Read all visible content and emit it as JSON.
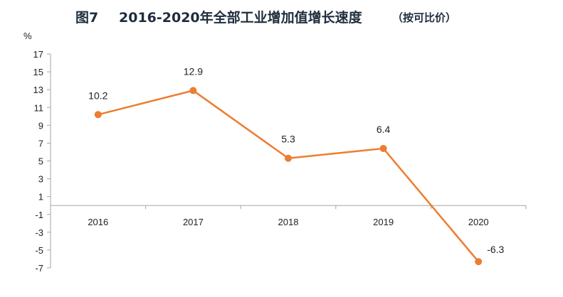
{
  "chart_data": {
    "type": "line",
    "title_prefix": "图7",
    "title": "2016-2020年全部工业增加值增长速度",
    "subtitle": "（按可比价）",
    "ylabel": "%",
    "xlabel": "",
    "categories": [
      "2016",
      "2017",
      "2018",
      "2019",
      "2020"
    ],
    "series": [
      {
        "values": [
          10.2,
          12.9,
          5.3,
          6.4,
          -6.3
        ],
        "color": "#ed7d31"
      }
    ],
    "data_labels": [
      "10.2",
      "12.9",
      "5.3",
      "6.4",
      "-6.3"
    ],
    "yticks": [
      17,
      15,
      13,
      11,
      9,
      7,
      5,
      3,
      1,
      -1,
      -3,
      -5,
      -7
    ],
    "ylim": [
      -7,
      17
    ],
    "grid": false,
    "legend": "none"
  }
}
